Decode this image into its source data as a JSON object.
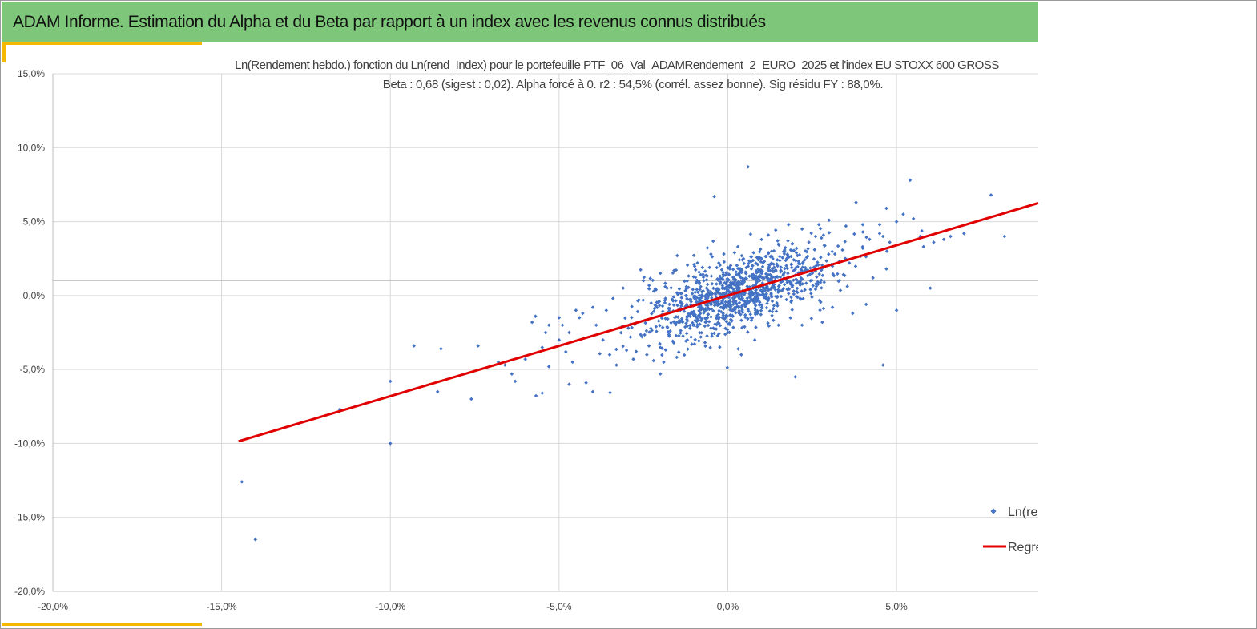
{
  "header": {
    "title": "ADAM Informe. Estimation du Alpha et du Beta par rapport à un index avec les revenus connus distribués",
    "color": "#7ec77a",
    "accent_color": "#f5b800"
  },
  "chart_data": {
    "type": "scatter",
    "title": "Ln(Rendement hebdo.) fonction du Ln(rend_Index) pour le portefeuille PTF_06_Val_ADAMRendement_2_EURO_2025 et l'index EU STOXX 600 GROSS",
    "subtitle": "Beta : 0,68 (sigest : 0,02). Alpha forcé à 0. r2 : 54,5% (corrél. assez bonne). Sig résidu FY : 88,0%.",
    "xlabel": "",
    "ylabel": "",
    "xlim": [
      -0.2,
      0.092
    ],
    "ylim": [
      -0.2,
      0.15
    ],
    "x_ticks": [
      -0.2,
      -0.15,
      -0.1,
      -0.05,
      0,
      0.05
    ],
    "x_tick_labels": [
      "-20,0%",
      "-15,0%",
      "-10,0%",
      "-5,0%",
      "0,0%",
      "5,0%"
    ],
    "y_ticks": [
      -0.2,
      -0.15,
      -0.1,
      -0.05,
      0,
      0.05,
      0.1,
      0.15
    ],
    "y_tick_labels": [
      "-20,0%",
      "-15,0%",
      "-10,0%",
      "-5,0%",
      "0,0%",
      "5,0%",
      "10,0%",
      "15,0%"
    ],
    "grid": true,
    "legend_position": "bottom-right",
    "series": [
      {
        "name": "Ln(rend_PTF)",
        "legend_label": "Ln(re",
        "kind": "scatter",
        "color": "#4472c4",
        "points": [
          [
            -0.144,
            -0.126
          ],
          [
            -0.14,
            -0.165
          ],
          [
            -0.115,
            -0.077
          ],
          [
            -0.1,
            -0.1
          ],
          [
            -0.1,
            -0.058
          ],
          [
            -0.093,
            -0.034
          ],
          [
            -0.086,
            -0.065
          ],
          [
            -0.085,
            -0.036
          ],
          [
            -0.076,
            -0.07
          ],
          [
            -0.074,
            -0.034
          ],
          [
            -0.068,
            -0.045
          ],
          [
            -0.066,
            -0.047
          ],
          [
            -0.064,
            -0.053
          ],
          [
            -0.063,
            -0.058
          ],
          [
            -0.06,
            -0.043
          ],
          [
            -0.058,
            -0.018
          ],
          [
            -0.057,
            -0.014
          ],
          [
            -0.055,
            -0.066
          ],
          [
            -0.054,
            -0.025
          ],
          [
            -0.053,
            -0.02
          ],
          [
            -0.053,
            -0.048
          ],
          [
            -0.05,
            -0.015
          ],
          [
            -0.049,
            -0.02
          ],
          [
            -0.048,
            -0.038
          ],
          [
            -0.047,
            -0.06
          ],
          [
            -0.046,
            -0.045
          ],
          [
            -0.045,
            -0.01
          ],
          [
            -0.044,
            -0.015
          ],
          [
            -0.042,
            -0.059
          ],
          [
            -0.04,
            -0.065
          ],
          [
            -0.039,
            -0.02
          ],
          [
            -0.037,
            -0.03
          ],
          [
            -0.036,
            -0.01
          ],
          [
            -0.035,
            -0.04
          ],
          [
            -0.033,
            -0.047
          ],
          [
            -0.03,
            -0.037
          ],
          [
            -0.028,
            -0.043
          ],
          [
            -0.024,
            -0.04
          ],
          [
            -0.022,
            -0.044
          ],
          [
            -0.02,
            -0.053
          ],
          [
            -0.019,
            -0.045
          ],
          [
            -0.015,
            0.027
          ],
          [
            -0.01,
            0.021
          ],
          [
            -0.008,
            0.014
          ],
          [
            -0.004,
            0.067
          ],
          [
            0.003,
            0.033
          ],
          [
            0.006,
            0.087
          ],
          [
            0.01,
            0.025
          ],
          [
            0.012,
            0.018
          ],
          [
            0.018,
            0.048
          ],
          [
            0.02,
            -0.055
          ],
          [
            0.022,
            0.045
          ],
          [
            0.027,
            0.048
          ],
          [
            0.03,
            0.051
          ],
          [
            0.035,
            0.047
          ],
          [
            0.038,
            0.063
          ],
          [
            0.04,
            0.048
          ],
          [
            0.04,
            0.043
          ],
          [
            0.042,
            0.038
          ],
          [
            0.045,
            0.042
          ],
          [
            0.046,
            0.04
          ],
          [
            0.045,
            0.048
          ],
          [
            0.046,
            -0.047
          ],
          [
            0.047,
            0.059
          ],
          [
            0.048,
            0.036
          ],
          [
            0.05,
            0.05
          ],
          [
            0.05,
            -0.01
          ],
          [
            0.052,
            0.055
          ],
          [
            0.055,
            0.052
          ],
          [
            0.054,
            0.078
          ],
          [
            0.057,
            0.04
          ],
          [
            0.058,
            0.033
          ],
          [
            0.06,
            0.005
          ],
          [
            0.061,
            0.036
          ],
          [
            0.064,
            0.038
          ],
          [
            0.066,
            0.04
          ],
          [
            0.07,
            0.042
          ],
          [
            0.078,
            0.068
          ],
          [
            0.082,
            0.04
          ],
          [
            0.04,
            0.032
          ],
          [
            0.036,
            0.022
          ],
          [
            0.033,
            0.01
          ],
          [
            0.043,
            0.012
          ],
          [
            0.047,
            0.018
          ],
          [
            0.041,
            -0.006
          ],
          [
            0.037,
            -0.012
          ],
          [
            -0.02,
            -0.035
          ],
          [
            -0.016,
            -0.032
          ],
          [
            -0.012,
            -0.03
          ],
          [
            -0.008,
            -0.028
          ],
          [
            -0.01,
            -0.02
          ],
          [
            -0.005,
            -0.022
          ],
          [
            0.0,
            -0.025
          ],
          [
            0.004,
            -0.04
          ],
          [
            0.008,
            -0.03
          ],
          [
            0.015,
            -0.02
          ],
          [
            0.022,
            -0.02
          ],
          [
            0.028,
            -0.018
          ],
          [
            0.031,
            -0.008
          ],
          [
            -0.031,
            0.005
          ],
          [
            -0.025,
            0.01
          ],
          [
            -0.02,
            0.015
          ],
          [
            -0.018,
            0.005
          ],
          [
            -0.005,
            0.028
          ],
          [
            0.013,
            0.03
          ],
          [
            0.019,
            0.035
          ],
          [
            0.024,
            0.036
          ],
          [
            0.026,
            0.04
          ],
          [
            -0.009,
            0.022
          ],
          [
            0.002,
            0.029
          ],
          [
            -0.034,
            -0.002
          ],
          [
            -0.04,
            -0.008
          ],
          [
            -0.043,
            -0.012
          ],
          [
            -0.047,
            -0.025
          ],
          [
            -0.05,
            -0.03
          ],
          [
            -0.055,
            -0.035
          ]
        ]
      },
      {
        "name": "Regression",
        "legend_label": "Regre",
        "kind": "line",
        "color": "#e00000",
        "beta": 0.68,
        "alpha": 0,
        "x_range": [
          -0.145,
          0.092
        ]
      }
    ],
    "dense_cloud": {
      "description_count": 1100,
      "x_mean": 0.003,
      "x_std": 0.014,
      "noise_std": 0.012,
      "seed": 7
    }
  }
}
